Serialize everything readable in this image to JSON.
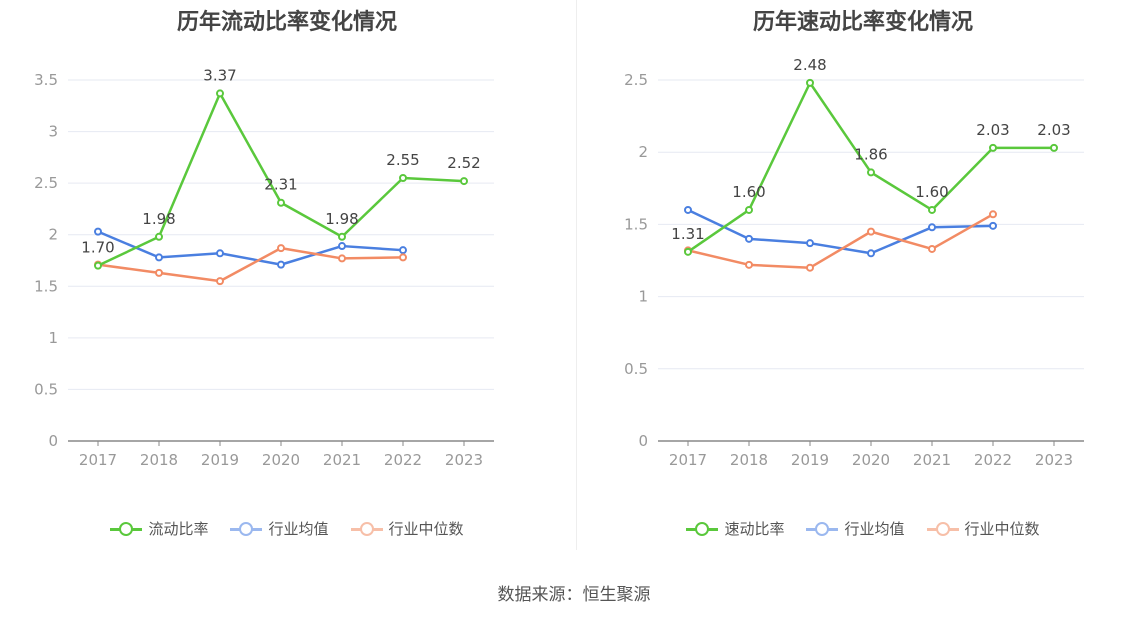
{
  "charts": [
    {
      "title": "历年流动比率变化情况",
      "legend": [
        "流动比率",
        "行业均值",
        "行业中位数"
      ]
    },
    {
      "title": "历年速动比率变化情况",
      "legend": [
        "速动比率",
        "行业均值",
        "行业中位数"
      ]
    }
  ],
  "source": "数据来源：恒生聚源",
  "chart_data": [
    {
      "type": "line",
      "title": "历年流动比率变化情况",
      "categories": [
        "2017",
        "2018",
        "2019",
        "2020",
        "2021",
        "2022",
        "2023"
      ],
      "ylim": [
        0,
        3.5
      ],
      "yticks": [
        0,
        0.5,
        1,
        1.5,
        2,
        2.5,
        3,
        3.5
      ],
      "ytick_labels": [
        "0",
        "0.5",
        "1",
        "1.5",
        "2",
        "2.5",
        "3",
        "3.5"
      ],
      "grid": true,
      "legend_position": "bottom",
      "series": [
        {
          "name": "流动比率",
          "color": "#5ac83c",
          "values": [
            1.7,
            1.98,
            3.37,
            2.31,
            1.98,
            2.55,
            2.52
          ],
          "labels": [
            "1.70",
            "1.98",
            "3.37",
            "2.31",
            "1.98",
            "2.55",
            "2.52"
          ]
        },
        {
          "name": "行业均值",
          "color": "#4a7fe0",
          "values": [
            2.03,
            1.78,
            1.82,
            1.71,
            1.89,
            1.85,
            null
          ]
        },
        {
          "name": "行业中位数",
          "color": "#f28b64",
          "values": [
            1.71,
            1.63,
            1.55,
            1.87,
            1.77,
            1.78,
            null
          ]
        }
      ]
    },
    {
      "type": "line",
      "title": "历年速动比率变化情况",
      "categories": [
        "2017",
        "2018",
        "2019",
        "2020",
        "2021",
        "2022",
        "2023"
      ],
      "ylim": [
        0,
        2.5
      ],
      "yticks": [
        0,
        0.5,
        1,
        1.5,
        2,
        2.5
      ],
      "ytick_labels": [
        "0",
        "0.5",
        "1",
        "1.5",
        "2",
        "2.5"
      ],
      "grid": true,
      "legend_position": "bottom",
      "series": [
        {
          "name": "速动比率",
          "color": "#5ac83c",
          "values": [
            1.31,
            1.6,
            2.48,
            1.86,
            1.6,
            2.03,
            2.03
          ],
          "labels": [
            "1.31",
            "1.60",
            "2.48",
            "1.86",
            "1.60",
            "2.03",
            "2.03"
          ]
        },
        {
          "name": "行业均值",
          "color": "#4a7fe0",
          "values": [
            1.6,
            1.4,
            1.37,
            1.3,
            1.48,
            1.49,
            null
          ]
        },
        {
          "name": "行业中位数",
          "color": "#f28b64",
          "values": [
            1.32,
            1.22,
            1.2,
            1.45,
            1.33,
            1.57,
            null
          ]
        }
      ]
    }
  ]
}
